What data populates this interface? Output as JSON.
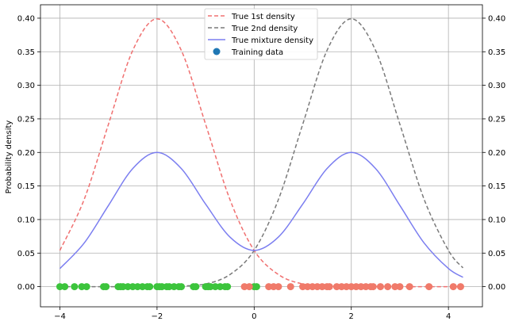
{
  "chart_data": {
    "type": "line",
    "title": "",
    "xlabel": "",
    "ylabel": "Probability density",
    "xlim": [
      -4.4,
      4.7
    ],
    "ylim": [
      -0.03,
      0.42
    ],
    "xticks": [
      -4,
      -2,
      0,
      2,
      4
    ],
    "xtick_labels": [
      "−4",
      "−2",
      "0",
      "2",
      "4"
    ],
    "yticks": [
      0.0,
      0.05,
      0.1,
      0.15,
      0.2,
      0.25,
      0.3,
      0.35,
      0.4
    ],
    "ytick_labels": [
      "0.00",
      "0.05",
      "0.10",
      "0.15",
      "0.20",
      "0.25",
      "0.30",
      "0.35",
      "0.40"
    ],
    "grid": true,
    "legend_position": "top-center",
    "series": [
      {
        "name": "True 1st density",
        "color": "#f07070",
        "style": "dashed",
        "x": [
          -4.0,
          -3.5,
          -3.0,
          -2.5,
          -2.0,
          -1.5,
          -1.0,
          -0.5,
          0.0,
          0.5,
          1.0,
          1.5,
          2.0,
          2.5,
          3.0,
          3.5,
          4.0,
          4.3
        ],
        "y": [
          0.054,
          0.13,
          0.242,
          0.352,
          0.399,
          0.352,
          0.242,
          0.13,
          0.054,
          0.018,
          0.004,
          0.001,
          0.0,
          0.0,
          0.0,
          0.0,
          0.0,
          0.0
        ]
      },
      {
        "name": "True 2nd density",
        "color": "#7a7a7a",
        "style": "dashed",
        "x": [
          -4.0,
          -3.5,
          -3.0,
          -2.5,
          -2.0,
          -1.5,
          -1.0,
          -0.5,
          0.0,
          0.5,
          1.0,
          1.5,
          2.0,
          2.5,
          3.0,
          3.5,
          4.0,
          4.3
        ],
        "y": [
          0.0,
          0.0,
          0.0,
          0.0,
          0.0,
          0.001,
          0.004,
          0.018,
          0.054,
          0.13,
          0.242,
          0.352,
          0.399,
          0.352,
          0.242,
          0.13,
          0.054,
          0.028
        ]
      },
      {
        "name": "True mixture density",
        "color": "#7b7ef0",
        "style": "solid",
        "x": [
          -4.0,
          -3.5,
          -3.0,
          -2.5,
          -2.0,
          -1.5,
          -1.0,
          -0.5,
          0.0,
          0.5,
          1.0,
          1.5,
          2.0,
          2.5,
          3.0,
          3.5,
          4.0,
          4.3
        ],
        "y": [
          0.027,
          0.065,
          0.121,
          0.176,
          0.2,
          0.176,
          0.123,
          0.074,
          0.054,
          0.074,
          0.123,
          0.176,
          0.2,
          0.176,
          0.121,
          0.065,
          0.027,
          0.014
        ]
      }
    ],
    "scatter": {
      "name": "Training data",
      "legend_color": "#1f77b4",
      "y": 0.0,
      "groups": [
        {
          "color": "#3cc43c",
          "x": [
            -4.0,
            -3.9,
            -3.7,
            -3.55,
            -3.45,
            -3.1,
            -3.05,
            -2.8,
            -2.75,
            -2.7,
            -2.6,
            -2.5,
            -2.4,
            -2.3,
            -2.2,
            -2.15,
            -2.0,
            -1.95,
            -1.9,
            -1.8,
            -1.75,
            -1.65,
            -1.55,
            -1.5,
            -1.25,
            -1.2,
            -1.0,
            -0.95,
            -0.9,
            -0.8,
            -0.7,
            -0.6,
            -0.55,
            0.0,
            0.05
          ]
        },
        {
          "color": "#f07a6a",
          "x": [
            -0.2,
            -0.1,
            0.3,
            0.4,
            0.5,
            0.75,
            1.0,
            1.1,
            1.2,
            1.3,
            1.4,
            1.5,
            1.55,
            1.7,
            1.8,
            1.9,
            2.0,
            2.1,
            2.2,
            2.3,
            2.4,
            2.45,
            2.6,
            2.75,
            2.9,
            3.0,
            3.2,
            3.6,
            4.1,
            4.25
          ]
        }
      ]
    }
  }
}
